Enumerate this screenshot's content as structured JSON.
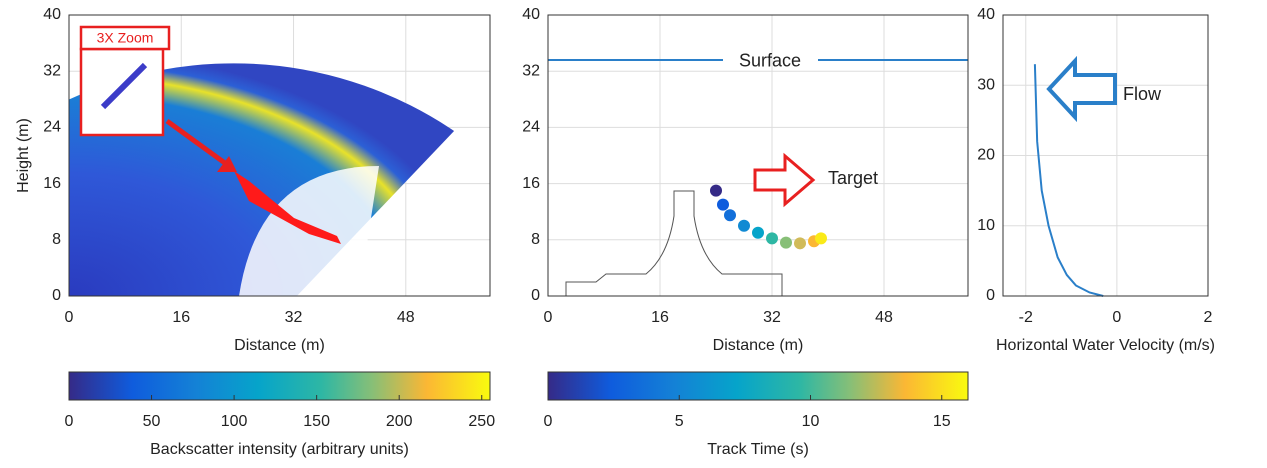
{
  "chart_data": [
    {
      "type": "image",
      "xlabel": "Distance (m)",
      "ylabel": "Height (m)",
      "xlim": [
        0,
        60
      ],
      "ylim": [
        0,
        40
      ],
      "xticks": [
        0,
        16,
        32,
        48
      ],
      "yticks": [
        0,
        8,
        16,
        24,
        32,
        40
      ],
      "grid": true,
      "annotation": "3X Zoom",
      "colorbar": {
        "label": "Backscatter intensity (arbitrary units)",
        "lim": [
          0,
          255
        ],
        "ticks": [
          0,
          50,
          100,
          150,
          200,
          250
        ]
      }
    },
    {
      "type": "scatter",
      "xlabel": "Distance (m)",
      "xlim": [
        0,
        60
      ],
      "ylim": [
        0,
        40
      ],
      "xticks": [
        0,
        16,
        32,
        48
      ],
      "yticks": [
        0,
        8,
        16,
        24,
        32,
        40
      ],
      "grid": true,
      "x": [
        24,
        25,
        26,
        28,
        30,
        32,
        34,
        36,
        38,
        39
      ],
      "y": [
        15,
        13,
        11.5,
        10,
        9,
        8.2,
        7.6,
        7.5,
        7.8,
        8.2
      ],
      "c": [
        0,
        2,
        3,
        4.5,
        6,
        8,
        10,
        12,
        14,
        15.5
      ],
      "reference_line": {
        "label": "Surface",
        "y": 33.6,
        "color": "#2a7fc9"
      },
      "annotation": "Target",
      "colorbar": {
        "label": "Track Time (s)",
        "lim": [
          0,
          16
        ],
        "ticks": [
          0,
          5,
          10,
          15
        ]
      }
    },
    {
      "type": "line",
      "xlabel": "Horizontal Water Velocity (m/s)",
      "color": "#2a7fc9",
      "xlim": [
        -2.5,
        2
      ],
      "ylim": [
        0,
        40
      ],
      "xticks": [
        -2,
        0,
        2
      ],
      "yticks": [
        0,
        10,
        20,
        30,
        40
      ],
      "grid": true,
      "x": [
        -0.3,
        -0.6,
        -0.9,
        -1.1,
        -1.3,
        -1.5,
        -1.65,
        -1.75,
        -1.8
      ],
      "y": [
        0,
        0.5,
        1.5,
        3,
        5.5,
        10,
        15,
        22,
        33
      ],
      "annotation": "Flow"
    }
  ]
}
